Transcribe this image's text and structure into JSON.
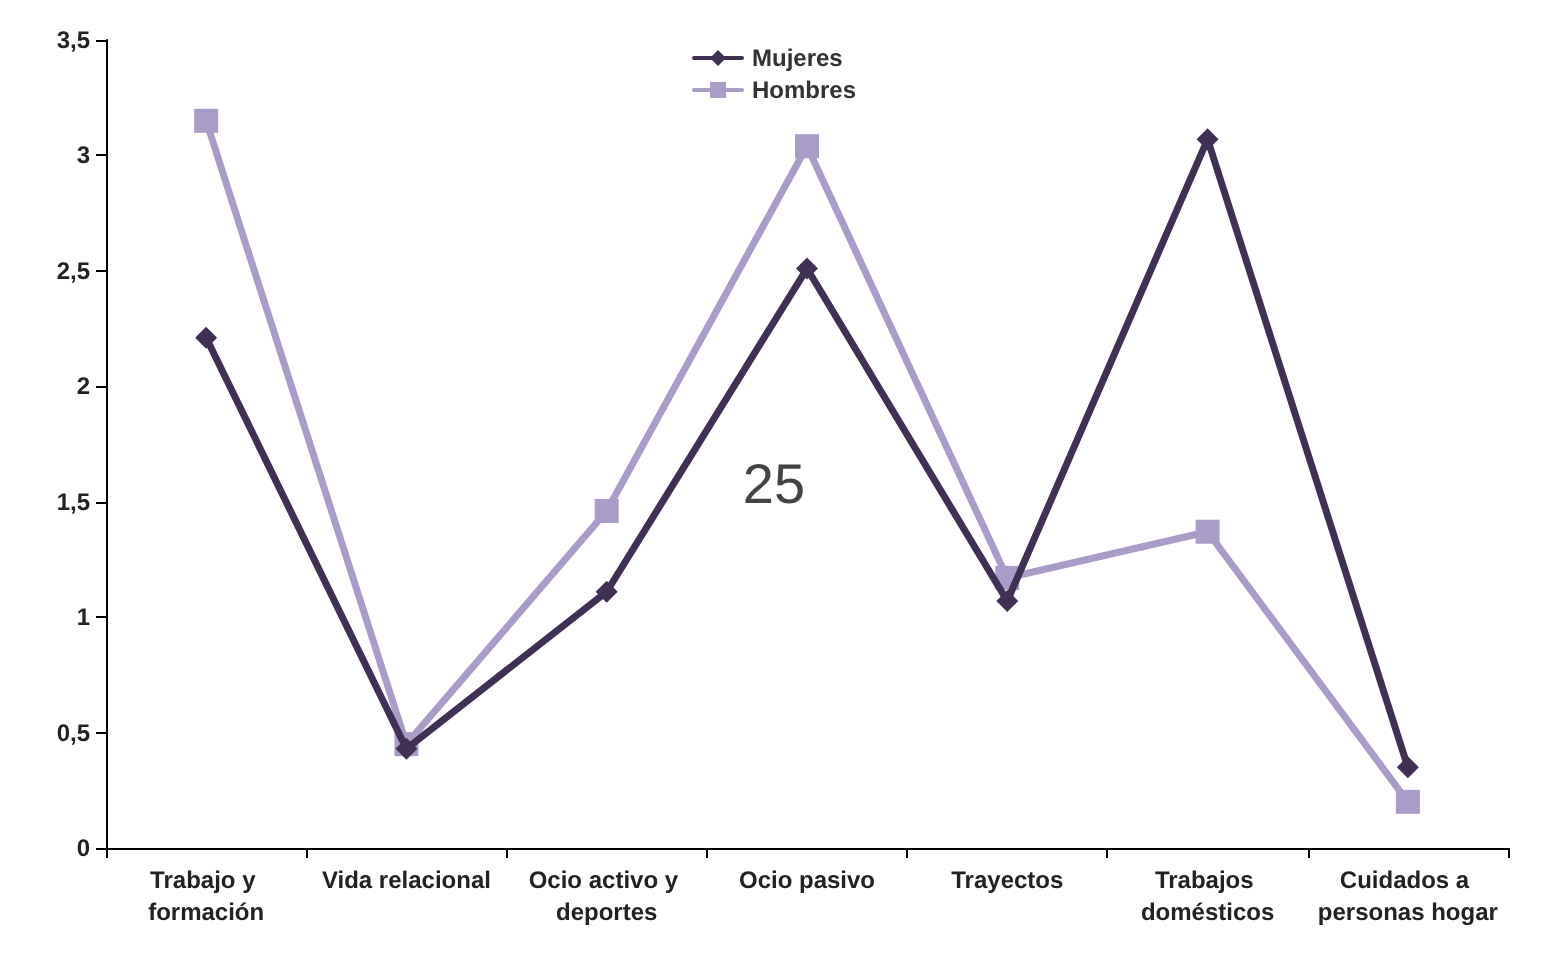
{
  "chart_data": {
    "type": "line",
    "categories": [
      "Trabajo y formación",
      "Vida relacional",
      "Ocio activo y deportes",
      "Ocio pasivo",
      "Trayectos",
      "Trabajos domésticos",
      "Cuidados a personas hogar"
    ],
    "series": [
      {
        "name": "Mujeres",
        "color": "#3f3154",
        "marker": "diamond",
        "values": [
          2.21,
          0.43,
          1.11,
          2.51,
          1.07,
          3.07,
          0.35
        ]
      },
      {
        "name": "Hombres",
        "color": "#a99cc6",
        "marker": "square",
        "values": [
          3.15,
          0.45,
          1.46,
          3.04,
          1.17,
          1.37,
          0.2
        ]
      }
    ],
    "ylim": [
      0,
      3.5
    ],
    "yticks": [
      0,
      {
        "value": 0.5,
        "label": "0,5"
      },
      1,
      {
        "value": 1.5,
        "label": "1,5"
      },
      2,
      {
        "value": 2.5,
        "label": "2,5"
      },
      3,
      {
        "value": 3.5,
        "label": "3,5"
      }
    ],
    "grid": false,
    "legend": "top",
    "line_style": "solid",
    "annotations": [
      "25"
    ]
  }
}
